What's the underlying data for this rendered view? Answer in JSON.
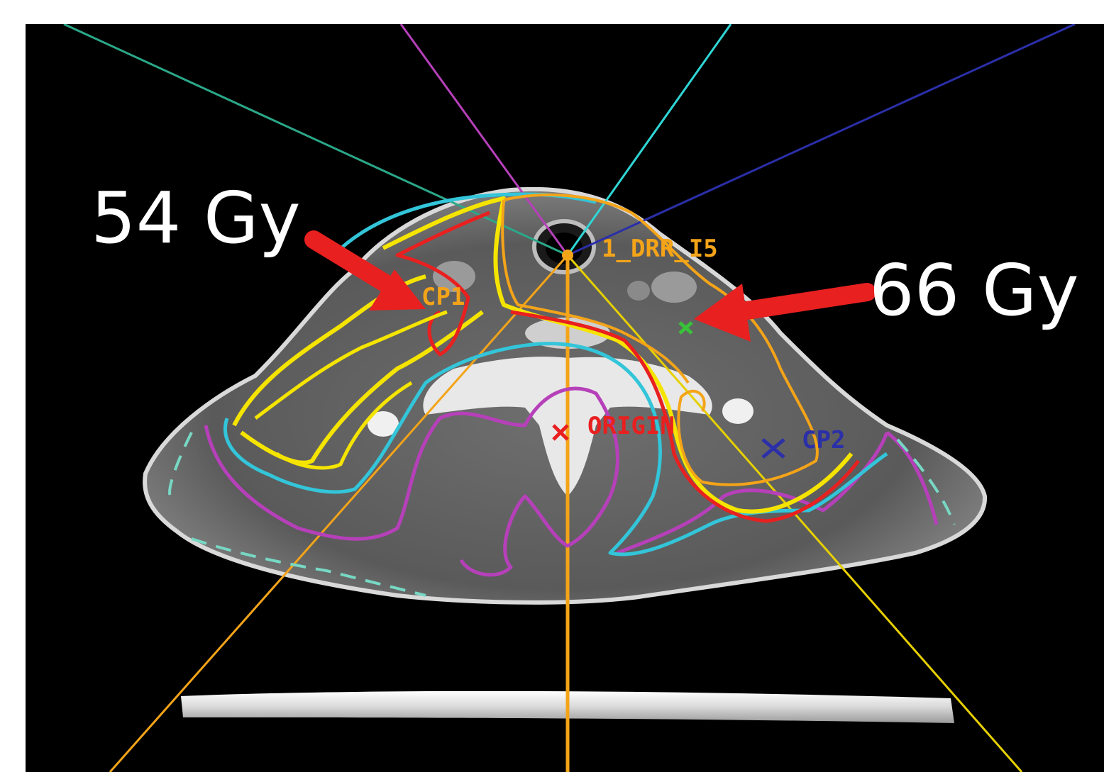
{
  "annotations": {
    "dose_left": "54 Gy",
    "dose_right": "66 Gy"
  },
  "overlay_labels": {
    "origin": "ORIGIN",
    "cp1": "CP1",
    "cp2": "CP2",
    "drr": "1_DRR_I5"
  },
  "colors": {
    "arrow": "#e8201f",
    "isodose_yellow": "#f5e400",
    "isodose_orange": "#f4a419",
    "isodose_red": "#e8201f",
    "isodose_cyan": "#33c5d9",
    "isodose_magenta": "#b640b9",
    "beam_cyan": "#2fd6d6",
    "beam_blue": "#2b2fa8",
    "beam_teal": "#2aa889",
    "beam_yellow": "#e6d000"
  }
}
